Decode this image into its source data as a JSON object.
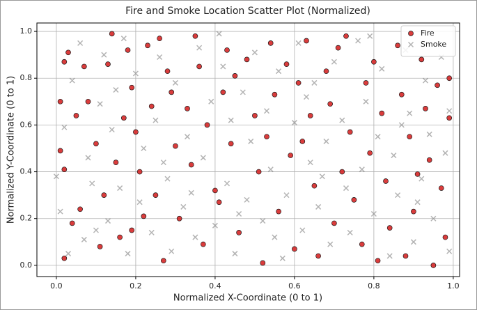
{
  "chart_data": {
    "type": "scatter",
    "title": "Fire and Smoke Location Scatter Plot (Normalized)",
    "x_label": "Normalized X-Coordinate (0 to 1)",
    "y_label": "Normalized Y-Coordinate (0 to 1)",
    "xlim": [
      -0.049,
      1.016
    ],
    "ylim": [
      -0.048,
      1.036
    ],
    "xticks": [
      {
        "value": 0,
        "label": "0.0"
      },
      0.2,
      0.4,
      0.6,
      0.8,
      {
        "value": 1,
        "label": "1.0"
      }
    ],
    "yticks": [
      {
        "value": 0,
        "label": "0.0"
      },
      0.2,
      0.4,
      0.6,
      0.8,
      {
        "value": 1,
        "label": "1.0"
      }
    ],
    "grid": true,
    "legend": "upper right",
    "series": [
      {
        "name": "Fire",
        "color": "#d62728",
        "marker": "o",
        "x": [
          0.01,
          0.02,
          0.03,
          0.05,
          0.01,
          0.02,
          0.04,
          0.02,
          0.07,
          0.08,
          0.1,
          0.12,
          0.14,
          0.13,
          0.15,
          0.16,
          0.18,
          0.19,
          0.2,
          0.21,
          0.19,
          0.23,
          0.24,
          0.25,
          0.27,
          0.26,
          0.28,
          0.3,
          0.31,
          0.33,
          0.34,
          0.35,
          0.36,
          0.38,
          0.37,
          0.4,
          0.42,
          0.43,
          0.44,
          0.46,
          0.48,
          0.5,
          0.51,
          0.52,
          0.54,
          0.55,
          0.56,
          0.58,
          0.59,
          0.6,
          0.62,
          0.63,
          0.64,
          0.65,
          0.66,
          0.68,
          0.69,
          0.7,
          0.72,
          0.73,
          0.74,
          0.75,
          0.77,
          0.78,
          0.79,
          0.8,
          0.82,
          0.83,
          0.84,
          0.86,
          0.87,
          0.88,
          0.89,
          0.9,
          0.92,
          0.93,
          0.94,
          0.95,
          0.96,
          0.97,
          0.98,
          0.99,
          0.99,
          0.06,
          0.11,
          0.17,
          0.29,
          0.41,
          0.53,
          0.61,
          0.71,
          0.81,
          0.91,
          0.45,
          0.22
        ],
        "values": [
          0.7,
          0.87,
          0.91,
          0.64,
          0.49,
          0.41,
          0.18,
          0.03,
          0.85,
          0.7,
          0.52,
          0.3,
          0.99,
          0.86,
          0.44,
          0.12,
          0.92,
          0.76,
          0.57,
          0.4,
          0.15,
          0.94,
          0.68,
          0.3,
          0.02,
          0.97,
          0.83,
          0.51,
          0.2,
          0.67,
          0.43,
          0.98,
          0.85,
          0.6,
          0.09,
          0.32,
          0.74,
          0.92,
          0.52,
          0.14,
          0.88,
          0.64,
          0.4,
          0.01,
          0.95,
          0.73,
          0.23,
          0.86,
          0.47,
          0.07,
          0.53,
          0.96,
          0.64,
          0.34,
          0.04,
          0.83,
          0.69,
          0.18,
          0.4,
          0.98,
          0.57,
          0.28,
          0.09,
          0.78,
          0.48,
          0.87,
          0.65,
          0.36,
          0.16,
          0.94,
          0.73,
          0.04,
          0.55,
          0.23,
          0.88,
          0.67,
          0.45,
          0,
          0.77,
          0.33,
          0.12,
          0.63,
          0.8,
          0.24,
          0.08,
          0.63,
          0.74,
          0.27,
          0.55,
          0.78,
          0.93,
          0.02,
          0.39,
          0.81,
          0.21
        ]
      },
      {
        "name": "Smoke",
        "color": "#808080",
        "marker": "x",
        "x": [
          0,
          0.01,
          0.02,
          0.04,
          0.06,
          0.07,
          0.08,
          0.09,
          0.11,
          0.12,
          0.13,
          0.14,
          0.16,
          0.17,
          0.18,
          0.2,
          0.21,
          0.22,
          0.24,
          0.25,
          0.26,
          0.28,
          0.29,
          0.3,
          0.32,
          0.33,
          0.35,
          0.36,
          0.37,
          0.39,
          0.4,
          0.41,
          0.43,
          0.44,
          0.45,
          0.47,
          0.48,
          0.49,
          0.5,
          0.52,
          0.53,
          0.54,
          0.56,
          0.57,
          0.58,
          0.6,
          0.61,
          0.62,
          0.64,
          0.65,
          0.66,
          0.68,
          0.69,
          0.7,
          0.72,
          0.73,
          0.74,
          0.76,
          0.77,
          0.78,
          0.8,
          0.81,
          0.82,
          0.84,
          0.85,
          0.86,
          0.88,
          0.89,
          0.9,
          0.92,
          0.93,
          0.94,
          0.95,
          0.97,
          0.98,
          0.99,
          0.99,
          0.03,
          0.15,
          0.27,
          0.42,
          0.55,
          0.67,
          0.79,
          0.91,
          0.34,
          0.63,
          0.87,
          0.46,
          0.1
        ],
        "values": [
          0.38,
          0.23,
          0.59,
          0.79,
          0.95,
          0.11,
          0.46,
          0.35,
          0.69,
          0.9,
          0.19,
          0.58,
          0.33,
          0.97,
          0.05,
          0.82,
          0.27,
          0.5,
          0.14,
          0.62,
          0.89,
          0.37,
          0.06,
          0.78,
          0.25,
          0.55,
          0.12,
          0.93,
          0.46,
          0.7,
          0.17,
          0.99,
          0.35,
          0.62,
          0.05,
          0.74,
          0.28,
          0.53,
          0.91,
          0.19,
          0.66,
          0.41,
          0.83,
          0.03,
          0.3,
          0.61,
          0.95,
          0.15,
          0.44,
          0.78,
          0.25,
          0.53,
          0.09,
          0.87,
          0.62,
          0.33,
          0.14,
          0.96,
          0.41,
          0.7,
          0.22,
          0.55,
          0.84,
          0.04,
          0.47,
          0.3,
          0.92,
          0.65,
          0.1,
          0.37,
          0.79,
          0.56,
          0.2,
          0.89,
          0.48,
          0.06,
          0.66,
          0.05,
          0.75,
          0.44,
          0.85,
          0.12,
          0.38,
          0.98,
          0.27,
          0.31,
          0.72,
          0.6,
          0.22,
          0.15
        ]
      }
    ]
  }
}
